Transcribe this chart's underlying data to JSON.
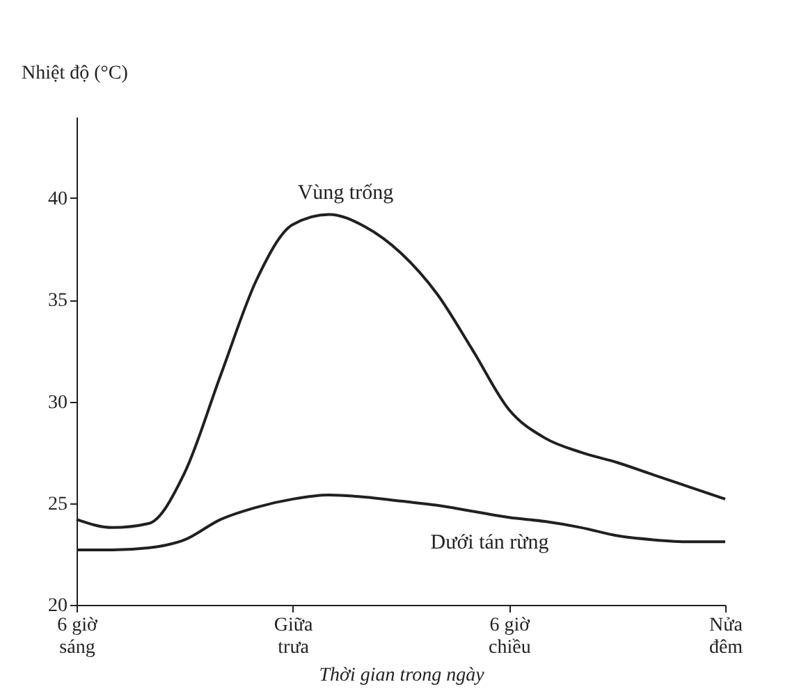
{
  "chart_data": {
    "type": "line",
    "xlabel": "Thời gian trong ngày",
    "ylabel": "Nhiệt độ (°C)",
    "categories": [
      "6 giờ\nsáng",
      null,
      null,
      null,
      null,
      null,
      "Giữa\ntrưa",
      null,
      null,
      null,
      null,
      null,
      "6 giờ\nchiều",
      null,
      null,
      null,
      null,
      null,
      "Nửa\nđêm"
    ],
    "ylim": [
      20,
      44
    ],
    "yticks": [
      20,
      25,
      30,
      35,
      40
    ],
    "grid": false,
    "marker": "none",
    "line_style": "solid",
    "series": [
      {
        "name": "Vùng trống",
        "color": "#231f20",
        "values": [
          24.2,
          23.8,
          24.0,
          26.5,
          31.3,
          36.0,
          38.7,
          39.2,
          38.6,
          37.3,
          35.3,
          32.5,
          29.6,
          28.2,
          27.5,
          27.0,
          26.4,
          25.8,
          25.2
        ]
      },
      {
        "name": "Dưới tán rừng",
        "color": "#231f20",
        "values": [
          22.7,
          22.7,
          22.8,
          23.2,
          24.2,
          24.8,
          25.2,
          25.4,
          25.3,
          25.1,
          24.9,
          24.6,
          24.3,
          24.1,
          23.8,
          23.4,
          23.2,
          23.1,
          23.1
        ]
      }
    ]
  }
}
